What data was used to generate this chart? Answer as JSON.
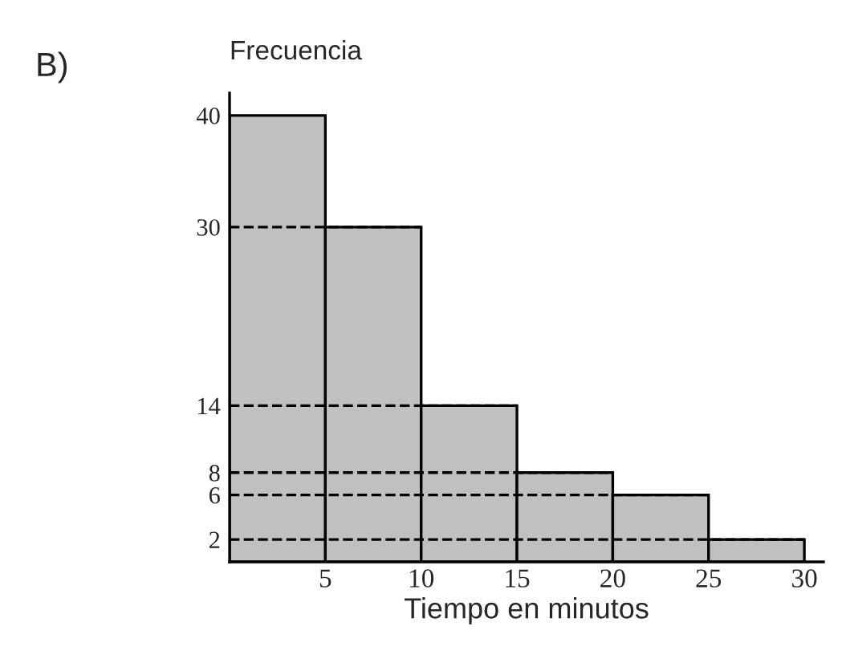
{
  "chart_data": {
    "type": "histogram",
    "ylabel": "Frecuencia",
    "xlabel": "Tiempo en minutos",
    "annotations": [
      "B)"
    ],
    "bins": [
      0,
      5,
      10,
      15,
      20,
      25,
      30
    ],
    "values": [
      40,
      30,
      14,
      8,
      6,
      2
    ],
    "color": "#c0c0c0",
    "xlim": [
      0,
      31
    ],
    "ylim": [
      0,
      42
    ],
    "xticks": [
      5,
      10,
      15,
      20,
      25,
      30
    ],
    "yticks": [
      2,
      6,
      8,
      14,
      30,
      40
    ],
    "ref_lines": [
      {
        "axis": "y",
        "value": 30,
        "line_style": "dashed"
      },
      {
        "axis": "y",
        "value": 14,
        "line_style": "dashed"
      },
      {
        "axis": "y",
        "value": 8,
        "line_style": "dashed"
      },
      {
        "axis": "y",
        "value": 6,
        "line_style": "dashed"
      },
      {
        "axis": "y",
        "value": 2,
        "line_style": "dashed"
      }
    ],
    "grid": false,
    "legend": false
  }
}
